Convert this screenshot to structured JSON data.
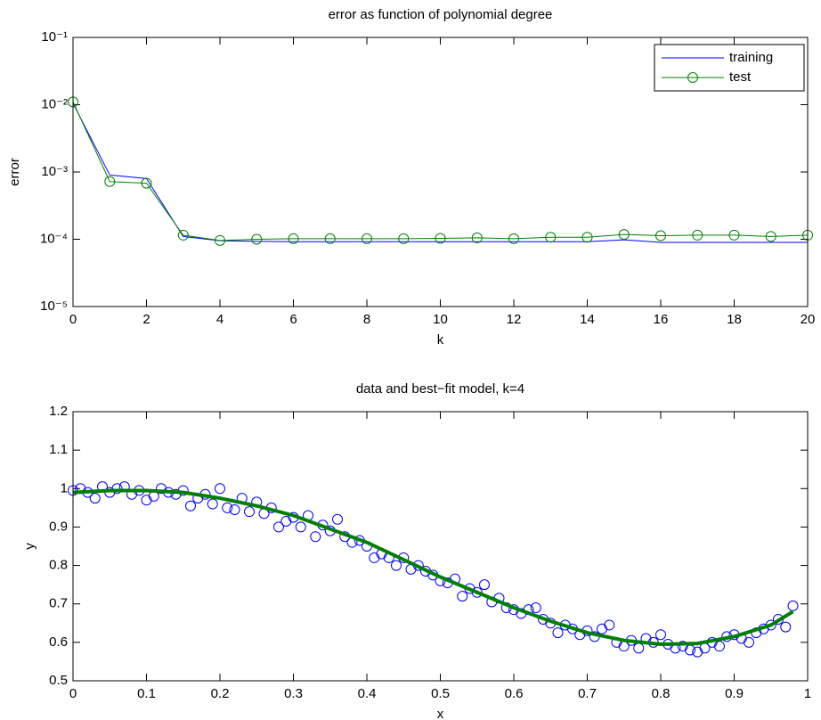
{
  "chart_data": [
    {
      "type": "line",
      "title": "error as function of polynomial degree",
      "x_label": "k",
      "y_label": "error",
      "x": [
        0,
        1,
        2,
        3,
        4,
        5,
        6,
        7,
        8,
        9,
        10,
        11,
        12,
        13,
        14,
        15,
        16,
        17,
        18,
        19,
        20
      ],
      "series": [
        {
          "name": "training",
          "color": "#0000ff",
          "values": [
            0.0105,
            0.0009,
            0.0008,
            0.00011,
            9.5e-05,
            9.3e-05,
            9.2e-05,
            9.2e-05,
            9.2e-05,
            9.2e-05,
            9.2e-05,
            9.2e-05,
            9.2e-05,
            9.2e-05,
            9.2e-05,
            9.8e-05,
            9e-05,
            9e-05,
            9e-05,
            9e-05,
            9e-05
          ]
        },
        {
          "name": "test",
          "color": "#008000",
          "marker": "circle",
          "values": [
            0.011,
            0.00072,
            0.00068,
            0.000115,
            9.6e-05,
            0.0001,
            0.000102,
            0.000102,
            0.000102,
            0.000102,
            0.000103,
            0.000105,
            0.000102,
            0.000107,
            0.000107,
            0.000118,
            0.000113,
            0.000115,
            0.000115,
            0.00011,
            0.000115
          ]
        }
      ],
      "xlim": [
        0,
        20
      ],
      "xticks": [
        0,
        2,
        4,
        6,
        8,
        10,
        12,
        14,
        16,
        18,
        20
      ],
      "ylim": [
        1e-05,
        0.1
      ],
      "y_scale": "log",
      "yticks": [
        {
          "value": 1e-05,
          "label": "10⁻⁵"
        },
        {
          "value": 0.0001,
          "label": "10⁻⁴"
        },
        {
          "value": 0.001,
          "label": "10⁻³"
        },
        {
          "value": 0.01,
          "label": "10⁻²"
        },
        {
          "value": 0.1,
          "label": "10⁻¹"
        }
      ],
      "grid": false,
      "legend": "northeast"
    },
    {
      "type": "scatter",
      "title": "data and best−fit model, k=4",
      "x_label": "x",
      "y_label": "y",
      "series": [
        {
          "color": "#0000ff",
          "marker": "circle",
          "x": [
            0,
            0.01,
            0.02,
            0.03,
            0.04,
            0.05,
            0.06,
            0.07,
            0.08,
            0.09,
            0.1,
            0.11,
            0.12,
            0.13,
            0.14,
            0.15,
            0.16,
            0.17,
            0.18,
            0.19,
            0.2,
            0.21,
            0.22,
            0.23,
            0.24,
            0.25,
            0.26,
            0.27,
            0.28,
            0.29,
            0.3,
            0.31,
            0.32,
            0.33,
            0.34,
            0.35,
            0.36,
            0.37,
            0.38,
            0.39,
            0.4,
            0.41,
            0.42,
            0.43,
            0.44,
            0.45,
            0.46,
            0.47,
            0.48,
            0.49,
            0.5,
            0.51,
            0.52,
            0.53,
            0.54,
            0.55,
            0.56,
            0.57,
            0.58,
            0.59,
            0.6,
            0.61,
            0.62,
            0.63,
            0.64,
            0.65,
            0.66,
            0.67,
            0.68,
            0.69,
            0.7,
            0.71,
            0.72,
            0.73,
            0.74,
            0.75,
            0.76,
            0.77,
            0.78,
            0.79,
            0.8,
            0.81,
            0.82,
            0.83,
            0.84,
            0.85,
            0.86,
            0.87,
            0.88,
            0.89,
            0.9,
            0.91,
            0.92,
            0.93,
            0.94,
            0.95,
            0.96,
            0.97,
            0.98
          ],
          "values": [
            0.995,
            1.0,
            0.99,
            0.975,
            1.005,
            0.99,
            1.0,
            1.005,
            0.985,
            0.995,
            0.97,
            0.98,
            1.0,
            0.99,
            0.985,
            0.995,
            0.955,
            0.975,
            0.985,
            0.96,
            1.0,
            0.95,
            0.945,
            0.975,
            0.94,
            0.965,
            0.935,
            0.95,
            0.9,
            0.915,
            0.925,
            0.9,
            0.93,
            0.875,
            0.905,
            0.89,
            0.92,
            0.875,
            0.86,
            0.865,
            0.85,
            0.82,
            0.83,
            0.82,
            0.8,
            0.82,
            0.79,
            0.8,
            0.785,
            0.775,
            0.76,
            0.755,
            0.765,
            0.72,
            0.74,
            0.73,
            0.75,
            0.705,
            0.715,
            0.69,
            0.685,
            0.675,
            0.685,
            0.69,
            0.66,
            0.65,
            0.625,
            0.645,
            0.635,
            0.62,
            0.63,
            0.615,
            0.635,
            0.645,
            0.6,
            0.59,
            0.605,
            0.585,
            0.61,
            0.6,
            0.62,
            0.595,
            0.585,
            0.59,
            0.58,
            0.575,
            0.585,
            0.6,
            0.59,
            0.615,
            0.62,
            0.61,
            0.6,
            0.625,
            0.635,
            0.645,
            0.66,
            0.64,
            0.695
          ]
        },
        {
          "color": "#007f00",
          "line_width": 4,
          "x": [
            0,
            0.05,
            0.1,
            0.15,
            0.2,
            0.25,
            0.3,
            0.35,
            0.4,
            0.45,
            0.5,
            0.55,
            0.6,
            0.65,
            0.7,
            0.75,
            0.8,
            0.85,
            0.9,
            0.95,
            0.98
          ],
          "values": [
            0.99,
            0.995,
            0.995,
            0.99,
            0.975,
            0.955,
            0.93,
            0.895,
            0.86,
            0.815,
            0.77,
            0.73,
            0.69,
            0.655,
            0.625,
            0.605,
            0.595,
            0.597,
            0.615,
            0.645,
            0.68
          ]
        }
      ],
      "xlim": [
        0,
        1
      ],
      "xticks": [
        0,
        0.1,
        0.2,
        0.3,
        0.4,
        0.5,
        0.6,
        0.7,
        0.8,
        0.9,
        1
      ],
      "ylim": [
        0.5,
        1.2
      ],
      "yticks": [
        0.5,
        0.6,
        0.7,
        0.8,
        0.9,
        1,
        1.1,
        1.2
      ],
      "grid": false
    }
  ]
}
